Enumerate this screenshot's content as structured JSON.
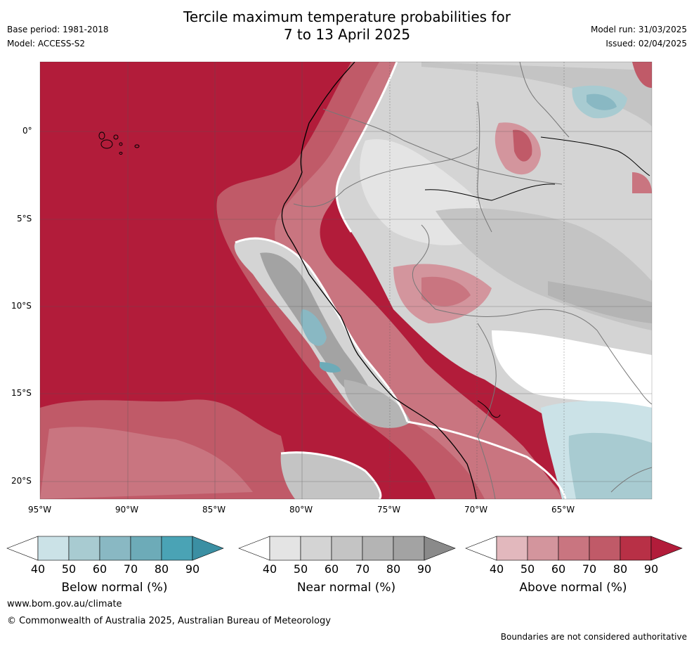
{
  "header": {
    "title_line1": "Tercile maximum temperature probabilities for",
    "title_line2": "7 to 13 April 2025",
    "base_period": "Base period: 1981-2018",
    "model": "Model: ACCESS-S2",
    "model_run": "Model run: 31/03/2025",
    "issued": "Issued: 02/04/2025"
  },
  "map": {
    "lat_labels": [
      "0°",
      "5°S",
      "10°S",
      "15°S",
      "20°S"
    ],
    "lon_labels": [
      "95°W",
      "90°W",
      "85°W",
      "80°W",
      "75°W",
      "70°W",
      "65°W"
    ]
  },
  "colorbars": [
    {
      "label": "Below normal (%)",
      "ticks": [
        "40",
        "50",
        "60",
        "70",
        "80",
        "90"
      ],
      "colors": [
        "#ffffff",
        "#cbe2e7",
        "#a8cbd1",
        "#89b8c3",
        "#6dabb8",
        "#4aa3b5",
        "#3b8fa3"
      ]
    },
    {
      "label": "Near normal (%)",
      "ticks": [
        "40",
        "50",
        "60",
        "70",
        "80",
        "90"
      ],
      "colors": [
        "#ffffff",
        "#e4e4e4",
        "#d4d4d4",
        "#c4c4c4",
        "#b4b4b4",
        "#a3a3a3",
        "#8a8a8a"
      ]
    },
    {
      "label": "Above normal (%)",
      "ticks": [
        "40",
        "50",
        "60",
        "70",
        "80",
        "90"
      ],
      "colors": [
        "#ffffff",
        "#e2b8bd",
        "#d3959d",
        "#c97580",
        "#c05a68",
        "#b83046",
        "#b21c3a"
      ]
    }
  ],
  "footer": {
    "website": "www.bom.gov.au/climate",
    "copyright": "© Commonwealth of Australia 2025, Australian Bureau of Meteorology",
    "disclaimer": "Boundaries are not considered authoritative"
  }
}
